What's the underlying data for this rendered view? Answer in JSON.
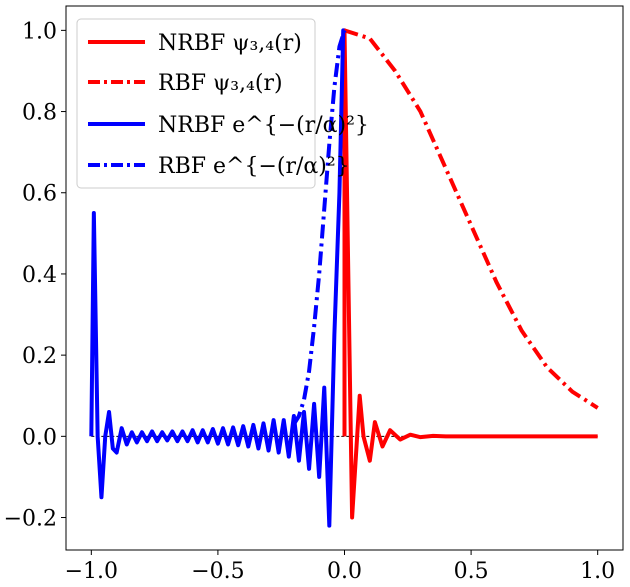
{
  "chart_data": {
    "type": "line",
    "title": "",
    "xlabel": "",
    "ylabel": "",
    "xlim": [
      -1.1,
      1.1
    ],
    "ylim": [
      -0.28,
      1.06
    ],
    "x_ticks": [
      -1.0,
      -0.5,
      0.0,
      0.5,
      1.0
    ],
    "x_tick_labels": [
      "−1.0",
      "−0.5",
      "0.0",
      "0.5",
      "1.0"
    ],
    "y_ticks": [
      -0.2,
      0.0,
      0.2,
      0.4,
      0.6,
      0.8,
      1.0
    ],
    "y_tick_labels": [
      "−0.2",
      "0.0",
      "0.2",
      "0.4",
      "0.6",
      "0.8",
      "1.0"
    ],
    "grid": false,
    "legend_position": "top-left",
    "series": [
      {
        "name": "NRBF ψ₃,₄(r)",
        "color": "#ff0000",
        "style": "solid",
        "x": [
          0.0,
          0.0,
          0.02,
          0.03,
          0.045,
          0.06,
          0.075,
          0.1,
          0.12,
          0.15,
          0.18,
          0.22,
          0.26,
          0.3,
          0.35,
          0.4,
          0.5,
          0.7,
          0.9,
          1.0
        ],
        "y": [
          0.0,
          1.0,
          0.2,
          -0.2,
          -0.05,
          0.1,
          0.0,
          -0.06,
          0.035,
          -0.025,
          0.015,
          -0.008,
          0.004,
          -0.002,
          0.001,
          0.0,
          0.0,
          0.0,
          0.0,
          0.0
        ]
      },
      {
        "name": "RBF ψ₃,₄(r)",
        "color": "#ff0000",
        "style": "dashdot",
        "x": [
          0.0,
          0.1,
          0.2,
          0.3,
          0.4,
          0.5,
          0.6,
          0.7,
          0.8,
          0.9,
          1.0
        ],
        "y": [
          1.0,
          0.98,
          0.9,
          0.8,
          0.66,
          0.52,
          0.38,
          0.26,
          0.17,
          0.11,
          0.07
        ]
      },
      {
        "name": "NRBF e^{−(r/α)²}",
        "color": "#0000ff",
        "style": "solid",
        "x": [
          -1.0,
          -1.0,
          -0.99,
          -0.975,
          -0.96,
          -0.945,
          -0.93,
          -0.915,
          -0.9,
          -0.88,
          -0.86,
          -0.84,
          -0.82,
          -0.8,
          -0.78,
          -0.76,
          -0.74,
          -0.72,
          -0.7,
          -0.68,
          -0.66,
          -0.64,
          -0.62,
          -0.6,
          -0.58,
          -0.56,
          -0.54,
          -0.52,
          -0.5,
          -0.48,
          -0.46,
          -0.44,
          -0.42,
          -0.4,
          -0.38,
          -0.36,
          -0.34,
          -0.32,
          -0.3,
          -0.28,
          -0.26,
          -0.24,
          -0.22,
          -0.2,
          -0.18,
          -0.16,
          -0.14,
          -0.12,
          -0.1,
          -0.08,
          -0.06,
          -0.04,
          -0.02,
          -0.005,
          0.0
        ],
        "y": [
          0.0,
          0.0,
          0.55,
          0.0,
          -0.15,
          0.0,
          0.06,
          -0.03,
          -0.04,
          0.02,
          -0.02,
          0.01,
          -0.015,
          0.01,
          -0.012,
          0.012,
          -0.012,
          0.01,
          -0.01,
          0.012,
          -0.012,
          0.012,
          -0.012,
          0.015,
          -0.015,
          0.015,
          -0.015,
          0.018,
          -0.018,
          0.02,
          -0.02,
          0.022,
          -0.022,
          0.025,
          -0.025,
          0.028,
          -0.03,
          0.032,
          -0.035,
          0.04,
          -0.04,
          0.04,
          -0.05,
          0.05,
          -0.06,
          0.06,
          -0.08,
          0.08,
          -0.1,
          0.12,
          -0.22,
          0.25,
          0.6,
          1.0,
          1.0
        ]
      },
      {
        "name": "RBF e^{−(r/α)²}",
        "color": "#0000ff",
        "style": "dashdot",
        "x": [
          -0.2,
          -0.18,
          -0.16,
          -0.14,
          -0.12,
          -0.1,
          -0.08,
          -0.06,
          -0.04,
          -0.02,
          0.0
        ],
        "y": [
          0.03,
          0.05,
          0.09,
          0.16,
          0.27,
          0.4,
          0.56,
          0.72,
          0.86,
          0.96,
          1.0
        ]
      }
    ],
    "reference_line": {
      "y": 0.0,
      "style": "dashed",
      "color": "#000000"
    }
  }
}
